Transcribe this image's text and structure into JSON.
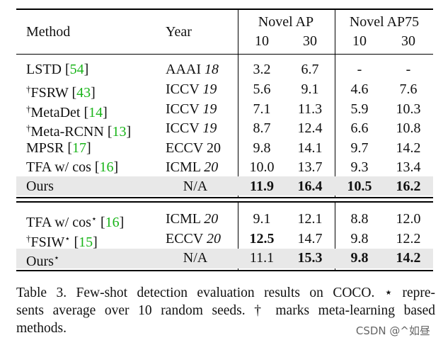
{
  "headers": {
    "method": "Method",
    "year": "Year",
    "novel_ap": "Novel AP",
    "novel_ap75": "Novel AP75",
    "shots": [
      "10",
      "30",
      "10",
      "30"
    ]
  },
  "dagger": "†",
  "star": "⋆",
  "rows": [
    {
      "name": "LSTD [",
      "cite": "54",
      "close": "]",
      "dagger": false,
      "star": false,
      "venue": "AAAI ",
      "yr": "18",
      "yr_italic": true,
      "v": [
        "3.2",
        "6.7",
        "-",
        "-"
      ],
      "bold": [
        false,
        false,
        false,
        false
      ]
    },
    {
      "name": "FSRW [",
      "cite": "43",
      "close": "]",
      "dagger": true,
      "star": false,
      "venue": "ICCV ",
      "yr": "19",
      "yr_italic": true,
      "v": [
        "5.6",
        "9.1",
        "4.6",
        "7.6"
      ],
      "bold": [
        false,
        false,
        false,
        false
      ]
    },
    {
      "name": "MetaDet [",
      "cite": "14",
      "close": "]",
      "dagger": true,
      "star": false,
      "venue": "ICCV ",
      "yr": "19",
      "yr_italic": true,
      "v": [
        "7.1",
        "11.3",
        "5.9",
        "10.3"
      ],
      "bold": [
        false,
        false,
        false,
        false
      ]
    },
    {
      "name": "Meta-RCNN [",
      "cite": "13",
      "close": "]",
      "dagger": true,
      "star": false,
      "venue": "ICCV ",
      "yr": "19",
      "yr_italic": true,
      "v": [
        "8.7",
        "12.4",
        "6.6",
        "10.8"
      ],
      "bold": [
        false,
        false,
        false,
        false
      ]
    },
    {
      "name": "MPSR [",
      "cite": "17",
      "close": "]",
      "dagger": false,
      "star": false,
      "venue": "ECCV ",
      "yr": "20",
      "yr_italic": false,
      "v": [
        "9.8",
        "14.1",
        "9.7",
        "14.2"
      ],
      "bold": [
        false,
        false,
        false,
        false
      ]
    },
    {
      "name": "TFA w/ cos [",
      "cite": "16",
      "close": "]",
      "dagger": false,
      "star": false,
      "venue": "ICML ",
      "yr": "20",
      "yr_italic": true,
      "v": [
        "10.0",
        "13.7",
        "9.3",
        "13.4"
      ],
      "bold": [
        false,
        false,
        false,
        false
      ]
    },
    {
      "name": "Ours",
      "cite": "",
      "close": "",
      "dagger": false,
      "star": false,
      "venue": "N/A",
      "yr": "",
      "yr_italic": false,
      "v": [
        "11.9",
        "16.4",
        "10.5",
        "16.2"
      ],
      "bold": [
        true,
        true,
        true,
        true
      ],
      "shaded": true
    },
    {
      "name": "TFA w/ cos",
      "cite": "16",
      "close": "]",
      "dagger": false,
      "star": true,
      "venue": "ICML ",
      "yr": "20",
      "yr_italic": true,
      "v": [
        "9.1",
        "12.1",
        "8.8",
        "12.0"
      ],
      "bold": [
        false,
        false,
        false,
        false
      ]
    },
    {
      "name": "FSIW",
      "cite": "15",
      "close": "]",
      "dagger": true,
      "star": true,
      "venue": "ECCV ",
      "yr": "20",
      "yr_italic": true,
      "v": [
        "12.5",
        "14.7",
        "9.8",
        "12.2"
      ],
      "bold": [
        true,
        false,
        false,
        false
      ]
    },
    {
      "name": "Ours",
      "cite": "",
      "close": "",
      "dagger": false,
      "star": true,
      "venue": "N/A",
      "yr": "",
      "yr_italic": false,
      "v": [
        "11.1",
        "15.3",
        "9.8",
        "14.2"
      ],
      "bold": [
        false,
        true,
        true,
        true
      ],
      "shaded": true
    }
  ],
  "caption": {
    "line1": "Table 3. Few-shot detection evaluation results on COCO. ⋆ repre-",
    "line2": "sents average over 10 random seeds. † marks meta-learning based",
    "line3": "methods."
  },
  "watermark": "CSDN @^如昼"
}
